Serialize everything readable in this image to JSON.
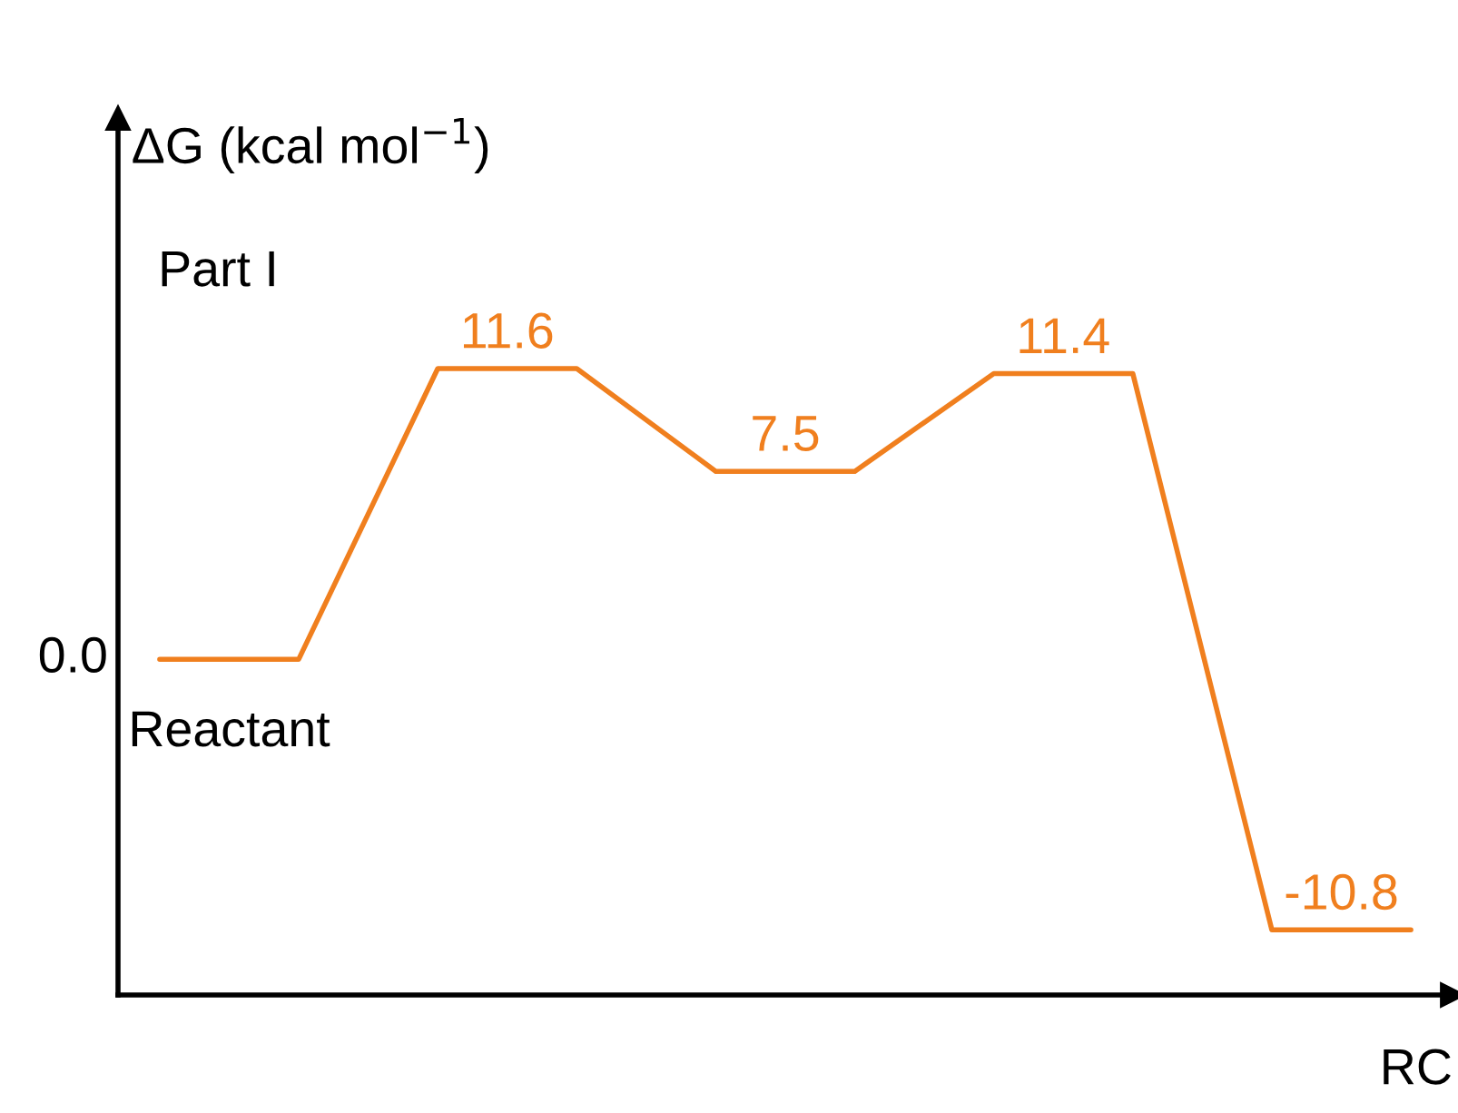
{
  "chart_data": {
    "type": "line",
    "ylim": [
      -13.4,
      21.6
    ],
    "ylabel": "ΔG (kcal mol$^{−1}$)",
    "xlabel": "RC",
    "categories": [
      null,
      null,
      null,
      null,
      null,
      null,
      null,
      null,
      null,
      null
    ],
    "values": [
      0,
      0,
      11.6,
      11.6,
      7.5,
      7.5,
      11.4,
      11.4,
      -10.8,
      -10.8
    ],
    "value_labels": [
      "0.0",
      null,
      "11.6",
      null,
      "7.5",
      null,
      "11.4",
      null,
      "-10.8",
      null
    ],
    "color": "#f07f1e",
    "annotations": [
      "Part I",
      "Reactant"
    ]
  }
}
